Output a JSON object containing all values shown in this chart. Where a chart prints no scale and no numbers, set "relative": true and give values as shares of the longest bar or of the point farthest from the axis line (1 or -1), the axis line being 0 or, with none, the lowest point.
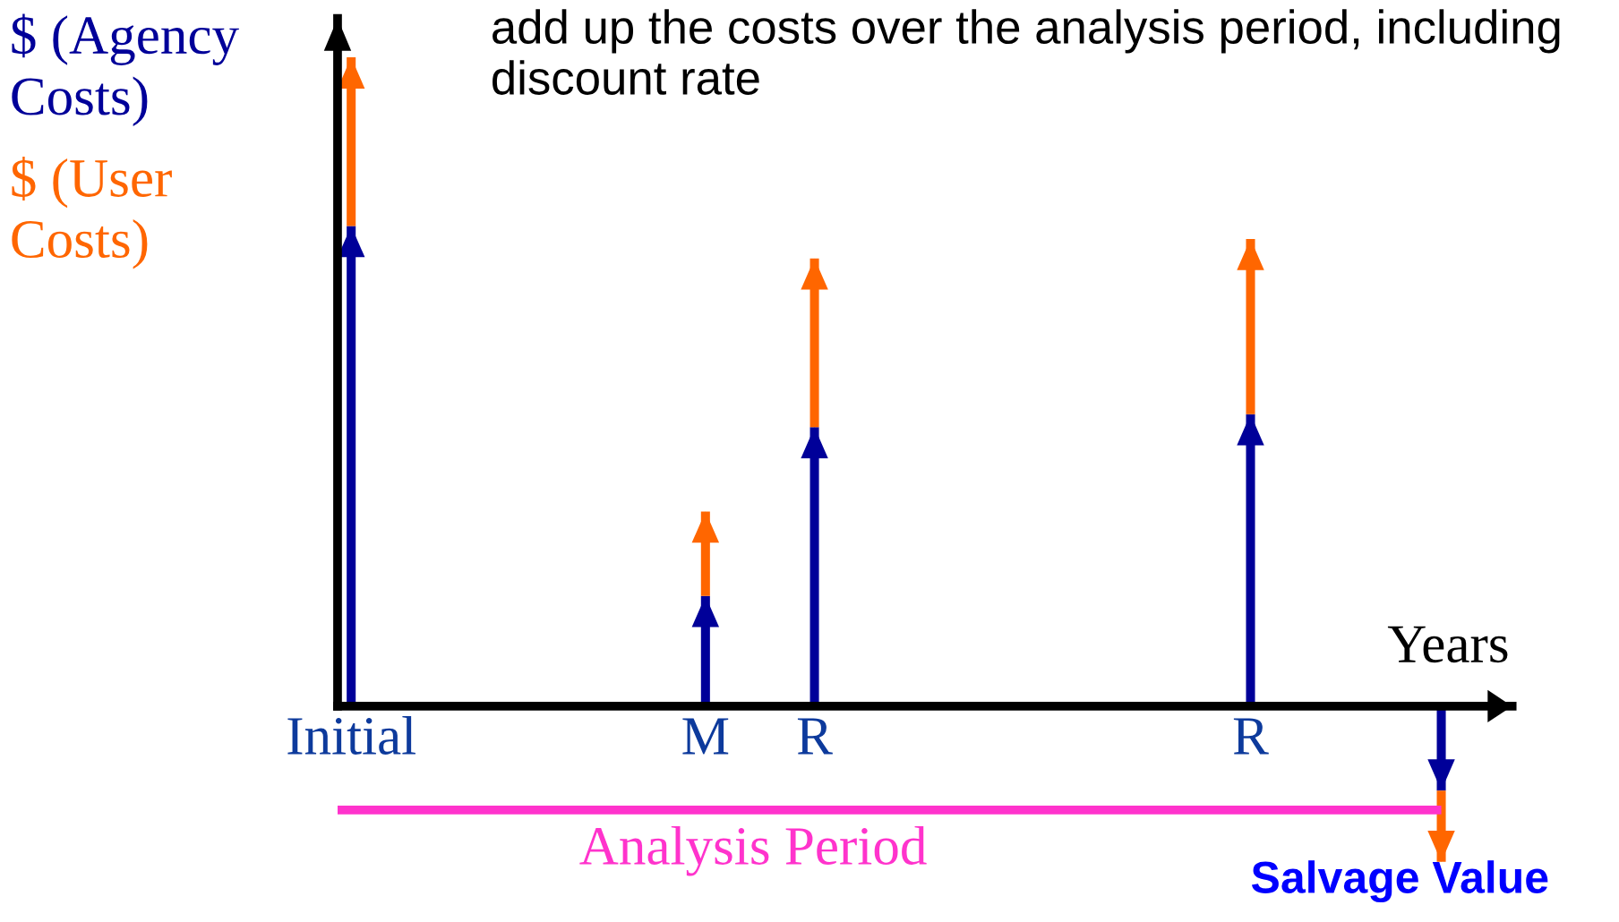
{
  "chart_data": {
    "type": "bar",
    "stacked": true,
    "relative": true,
    "title": "add up the costs over the analysis period, including discount rate",
    "xlabel": "Years",
    "categories": [
      "Initial",
      null,
      null,
      null,
      null,
      null,
      null,
      null,
      null,
      null,
      null,
      null,
      null,
      "M",
      null,
      null,
      null,
      "R",
      null,
      null,
      null,
      null,
      null,
      null,
      null,
      null,
      null,
      null,
      null,
      null,
      null,
      null,
      null,
      "R",
      null,
      null,
      null,
      null,
      null,
      null,
      null
    ],
    "series": [
      {
        "name": "$ (Agency\nCosts)",
        "color": "#000099",
        "values": [
          0.74,
          null,
          null,
          null,
          null,
          null,
          null,
          null,
          null,
          null,
          null,
          null,
          null,
          0.17,
          null,
          null,
          null,
          0.43,
          null,
          null,
          null,
          null,
          null,
          null,
          null,
          null,
          null,
          null,
          null,
          null,
          null,
          null,
          null,
          0.45,
          null,
          null,
          null,
          null,
          null,
          null,
          -0.13
        ]
      },
      {
        "name": "$ (User\nCosts)",
        "color": "#ff6600",
        "values": [
          0.26,
          null,
          null,
          null,
          null,
          null,
          null,
          null,
          null,
          null,
          null,
          null,
          null,
          0.13,
          null,
          null,
          null,
          0.26,
          null,
          null,
          null,
          null,
          null,
          null,
          null,
          null,
          null,
          null,
          null,
          null,
          null,
          null,
          null,
          0.27,
          null,
          null,
          null,
          null,
          null,
          null,
          -0.11
        ]
      }
    ],
    "annotations": [
      "Salvage Value"
    ],
    "ref_lines": [
      {
        "axis": "y",
        "value": -0.16,
        "label": "Analysis Period",
        "color": "#ff33cc"
      }
    ],
    "legend": "left",
    "grid": false
  }
}
